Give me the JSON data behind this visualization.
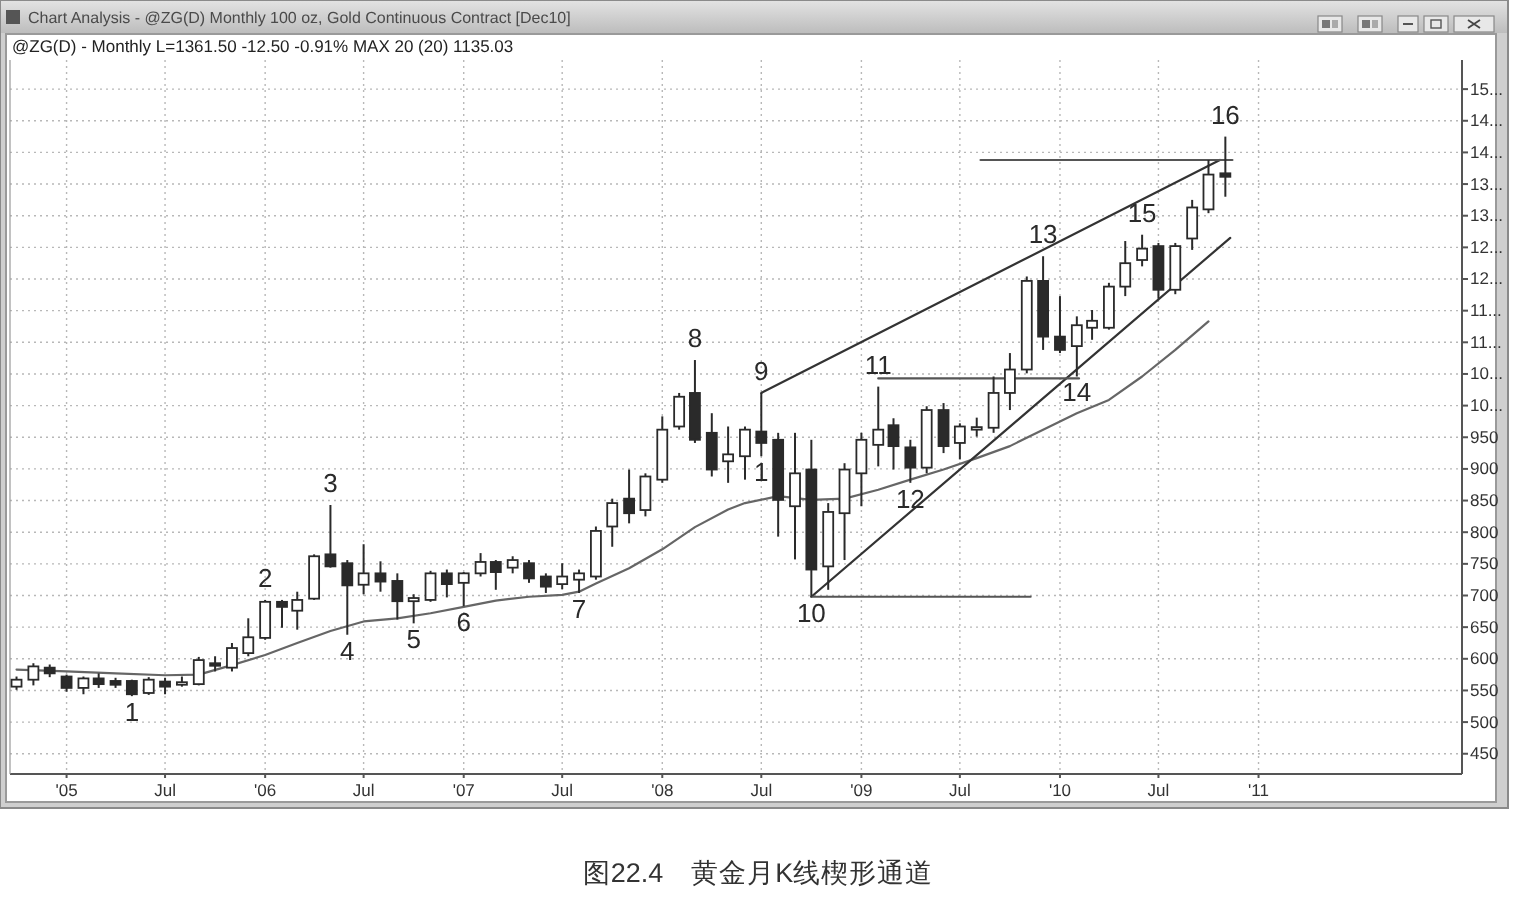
{
  "chart_data": {
    "type": "candlestick",
    "title": "Chart Analysis - @ZG(D) Monthly 100 oz, Gold Continuous Contract [Dec10]",
    "subtitle": "@ZG(D) - Monthly L=1361.50 -12.50 -0.91% MAX 20 (20) 1135.03",
    "annotations": [
      {
        "text": "1",
        "x": "2005-05",
        "y": 541
      },
      {
        "text": "2",
        "x": "2006-01",
        "y": 693
      },
      {
        "text": "3",
        "x": "2006-05",
        "y": 843
      },
      {
        "text": "4",
        "x": "2006-06",
        "y": 638
      },
      {
        "text": "5",
        "x": "2006-10",
        "y": 656
      },
      {
        "text": "6",
        "x": "2007-01",
        "y": 683
      },
      {
        "text": "7",
        "x": "2007-08",
        "y": 704
      },
      {
        "text": "8",
        "x": "2008-03",
        "y": 1072
      },
      {
        "text": "9",
        "x": "2008-07",
        "y": 1020
      },
      {
        "text": "1",
        "x": "2008-07",
        "y": 920
      },
      {
        "text": "10",
        "x": "2008-10",
        "y": 698
      },
      {
        "text": "11",
        "x": "2009-02",
        "y": 1030
      },
      {
        "text": "12",
        "x": "2009-04",
        "y": 878
      },
      {
        "text": "13",
        "x": "2009-12",
        "y": 1236
      },
      {
        "text": "14",
        "x": "2010-02",
        "y": 1046
      },
      {
        "text": "15",
        "x": "2010-06",
        "y": 1270
      },
      {
        "text": "16",
        "x": "2010-11",
        "y": 1425
      },
      "图22.4　黄金月K线楔形通道"
    ],
    "x": [
      "2004-10",
      "2004-11",
      "2004-12",
      "2005-01",
      "2005-02",
      "2005-03",
      "2005-04",
      "2005-05",
      "2005-06",
      "2005-07",
      "2005-08",
      "2005-09",
      "2005-10",
      "2005-11",
      "2005-12",
      "2006-01",
      "2006-02",
      "2006-03",
      "2006-04",
      "2006-05",
      "2006-06",
      "2006-07",
      "2006-08",
      "2006-09",
      "2006-10",
      "2006-11",
      "2006-12",
      "2007-01",
      "2007-02",
      "2007-03",
      "2007-04",
      "2007-05",
      "2007-06",
      "2007-07",
      "2007-08",
      "2007-09",
      "2007-10",
      "2007-11",
      "2007-12",
      "2008-01",
      "2008-02",
      "2008-03",
      "2008-04",
      "2008-05",
      "2008-06",
      "2008-07",
      "2008-08",
      "2008-09",
      "2008-10",
      "2008-11",
      "2008-12",
      "2009-01",
      "2009-02",
      "2009-03",
      "2009-04",
      "2009-05",
      "2009-06",
      "2009-07",
      "2009-08",
      "2009-09",
      "2009-10",
      "2009-11",
      "2009-12",
      "2010-01",
      "2010-02",
      "2010-03",
      "2010-04",
      "2010-05",
      "2010-06",
      "2010-07",
      "2010-08",
      "2010-09",
      "2010-10",
      "2010-11"
    ],
    "ohlc": [
      [
        556,
        572,
        551,
        567
      ],
      [
        567,
        593,
        558,
        588
      ],
      [
        586,
        591,
        571,
        577
      ],
      [
        572,
        575,
        548,
        554
      ],
      [
        554,
        572,
        544,
        569
      ],
      [
        569,
        577,
        554,
        560
      ],
      [
        565,
        570,
        554,
        559
      ],
      [
        565,
        567,
        541,
        544
      ],
      [
        546,
        571,
        543,
        567
      ],
      [
        564,
        570,
        544,
        556
      ],
      [
        559,
        572,
        556,
        563
      ],
      [
        560,
        603,
        558,
        598
      ],
      [
        593,
        604,
        580,
        589
      ],
      [
        586,
        625,
        580,
        617
      ],
      [
        609,
        664,
        604,
        634
      ],
      [
        633,
        693,
        630,
        690
      ],
      [
        690,
        693,
        649,
        682
      ],
      [
        676,
        706,
        646,
        693
      ],
      [
        695,
        765,
        693,
        762
      ],
      [
        765,
        843,
        744,
        746
      ],
      [
        751,
        756,
        638,
        716
      ],
      [
        717,
        781,
        702,
        735
      ],
      [
        735,
        754,
        706,
        722
      ],
      [
        723,
        735,
        662,
        691
      ],
      [
        691,
        702,
        656,
        696
      ],
      [
        693,
        739,
        690,
        735
      ],
      [
        735,
        741,
        697,
        718
      ],
      [
        720,
        737,
        683,
        735
      ],
      [
        735,
        767,
        730,
        753
      ],
      [
        753,
        756,
        709,
        737
      ],
      [
        744,
        762,
        735,
        756
      ],
      [
        751,
        756,
        720,
        727
      ],
      [
        730,
        735,
        704,
        714
      ],
      [
        718,
        751,
        710,
        730
      ],
      [
        725,
        741,
        704,
        735
      ],
      [
        730,
        809,
        725,
        802
      ],
      [
        809,
        853,
        777,
        846
      ],
      [
        853,
        899,
        814,
        830
      ],
      [
        835,
        893,
        825,
        888
      ],
      [
        883,
        983,
        878,
        962
      ],
      [
        967,
        1020,
        962,
        1014
      ],
      [
        1020,
        1072,
        941,
        946
      ],
      [
        957,
        988,
        888,
        899
      ],
      [
        912,
        967,
        878,
        923
      ],
      [
        920,
        967,
        883,
        962
      ],
      [
        959,
        1020,
        920,
        941
      ],
      [
        946,
        957,
        793,
        851
      ],
      [
        841,
        957,
        757,
        893
      ],
      [
        899,
        946,
        698,
        741
      ],
      [
        746,
        846,
        709,
        832
      ],
      [
        830,
        909,
        756,
        899
      ],
      [
        893,
        957,
        841,
        946
      ],
      [
        938,
        1030,
        904,
        962
      ],
      [
        969,
        980,
        899,
        936
      ],
      [
        934,
        946,
        878,
        902
      ],
      [
        902,
        999,
        893,
        993
      ],
      [
        993,
        1004,
        925,
        936
      ],
      [
        941,
        972,
        915,
        967
      ],
      [
        962,
        981,
        951,
        966
      ],
      [
        965,
        1046,
        957,
        1020
      ],
      [
        1020,
        1083,
        993,
        1057
      ],
      [
        1057,
        1204,
        1051,
        1197
      ],
      [
        1197,
        1236,
        1088,
        1109
      ],
      [
        1109,
        1173,
        1083,
        1088
      ],
      [
        1094,
        1141,
        1046,
        1127
      ],
      [
        1123,
        1151,
        1104,
        1134
      ],
      [
        1123,
        1194,
        1120,
        1188
      ],
      [
        1188,
        1260,
        1173,
        1225
      ],
      [
        1230,
        1270,
        1220,
        1248
      ],
      [
        1252,
        1257,
        1169,
        1183
      ],
      [
        1183,
        1257,
        1176,
        1252
      ],
      [
        1264,
        1325,
        1246,
        1313
      ],
      [
        1310,
        1388,
        1304,
        1365
      ],
      [
        1367,
        1425,
        1330,
        1361.5
      ]
    ],
    "color": "#2a2a2a",
    "series": [
      {
        "type": "line",
        "color": "#666666",
        "x": [
          "2004-10",
          "2005-01",
          "2005-04",
          "2005-07",
          "2005-09",
          "2005-11",
          "2006-01",
          "2006-03",
          "2006-05",
          "2006-07",
          "2006-09",
          "2006-11",
          "2007-01",
          "2007-03",
          "2007-05",
          "2007-07",
          "2007-08",
          "2007-09",
          "2007-11",
          "2008-01",
          "2008-03",
          "2008-05",
          "2008-06",
          "2008-08",
          "2008-10",
          "2008-12",
          "2009-02",
          "2009-04",
          "2009-06",
          "2009-08",
          "2009-10",
          "2009-12",
          "2010-02",
          "2010-04",
          "2010-06",
          "2010-08",
          "2010-10"
        ],
        "values": [
          583,
          580,
          577,
          574,
          575,
          590,
          606,
          625,
          644,
          659,
          664,
          672,
          682,
          692,
          698,
          701,
          706,
          719,
          743,
          773,
          808,
          836,
          846,
          857,
          851,
          853,
          867,
          883,
          899,
          917,
          936,
          962,
          988,
          1009,
          1046,
          1088,
          1133
        ]
      },
      {
        "type": "line",
        "color": "#333333",
        "x": [
          "2008-07",
          "2010-10-22"
        ],
        "values": [
          1020,
          1388
        ]
      },
      {
        "type": "line",
        "color": "#333333",
        "x": [
          "2008-10",
          "2010-11-10"
        ],
        "values": [
          698,
          1265
        ]
      },
      {
        "type": "line",
        "color": "#555555",
        "x": [
          "2009-02",
          "2010-02-05"
        ],
        "values": [
          1043,
          1043
        ]
      },
      {
        "type": "line",
        "color": "#555555",
        "x": [
          "2009-08-08",
          "2010-11-14"
        ],
        "values": [
          1388,
          1388
        ]
      },
      {
        "type": "line",
        "color": "#555555",
        "x": [
          "2008-10",
          "2009-11-08"
        ],
        "values": [
          698,
          698
        ]
      }
    ],
    "xlim": [
      "2004-09-19",
      "2012-01-10"
    ],
    "xticks": [
      {
        "value": "2005-01",
        "label": "'05"
      },
      {
        "value": "2005-07",
        "label": "Jul"
      },
      {
        "value": "2006-01",
        "label": "'06"
      },
      {
        "value": "2006-07",
        "label": "Jul"
      },
      {
        "value": "2007-01",
        "label": "'07"
      },
      {
        "value": "2007-07",
        "label": "Jul"
      },
      {
        "value": "2008-01",
        "label": "'08"
      },
      {
        "value": "2008-07",
        "label": "Jul"
      },
      {
        "value": "2009-01",
        "label": "'09"
      },
      {
        "value": "2009-07",
        "label": "Jul"
      },
      {
        "value": "2010-01",
        "label": "'10"
      },
      {
        "value": "2010-07",
        "label": "Jul"
      },
      {
        "value": "2011-01",
        "label": "'11"
      }
    ],
    "ylim": [
      418,
      1546
    ],
    "yticks": [
      450,
      500,
      550,
      600,
      650,
      700,
      750,
      800,
      850,
      900,
      950,
      {
        "value": 1000,
        "label": "10..."
      },
      {
        "value": 1050,
        "label": "10..."
      },
      {
        "value": 1100,
        "label": "11..."
      },
      {
        "value": 1150,
        "label": "11..."
      },
      {
        "value": 1200,
        "label": "12..."
      },
      {
        "value": 1250,
        "label": "12..."
      },
      {
        "value": 1300,
        "label": "13..."
      },
      {
        "value": 1350,
        "label": "13..."
      },
      {
        "value": 1400,
        "label": "14..."
      },
      {
        "value": 1450,
        "label": "14..."
      },
      {
        "value": 1500,
        "label": "15..."
      }
    ],
    "grid": true
  }
}
